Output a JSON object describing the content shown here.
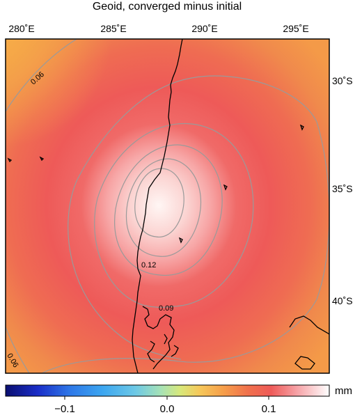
{
  "title": "Geoid, converged minus initial",
  "lon_ticks": [
    "280˚E",
    "285˚E",
    "290˚E",
    "295˚E"
  ],
  "lat_ticks": [
    "30˚S",
    "35˚S",
    "40˚S"
  ],
  "contour_labels": [
    "0.06",
    "0.12",
    "0.09",
    "0.06"
  ],
  "colorbar": {
    "unit": "mm",
    "tick_labels": [
      "−0.1",
      "0.0",
      "0.1"
    ],
    "range": [
      -0.16,
      0.16
    ]
  },
  "colors": {
    "background_field": "#ee5a58",
    "outer_field": "#f08a4c",
    "corner_field": "#f5a94a",
    "center_field": "#fff4f2",
    "contour": "#9a9a9a",
    "coast": "#000000"
  }
}
